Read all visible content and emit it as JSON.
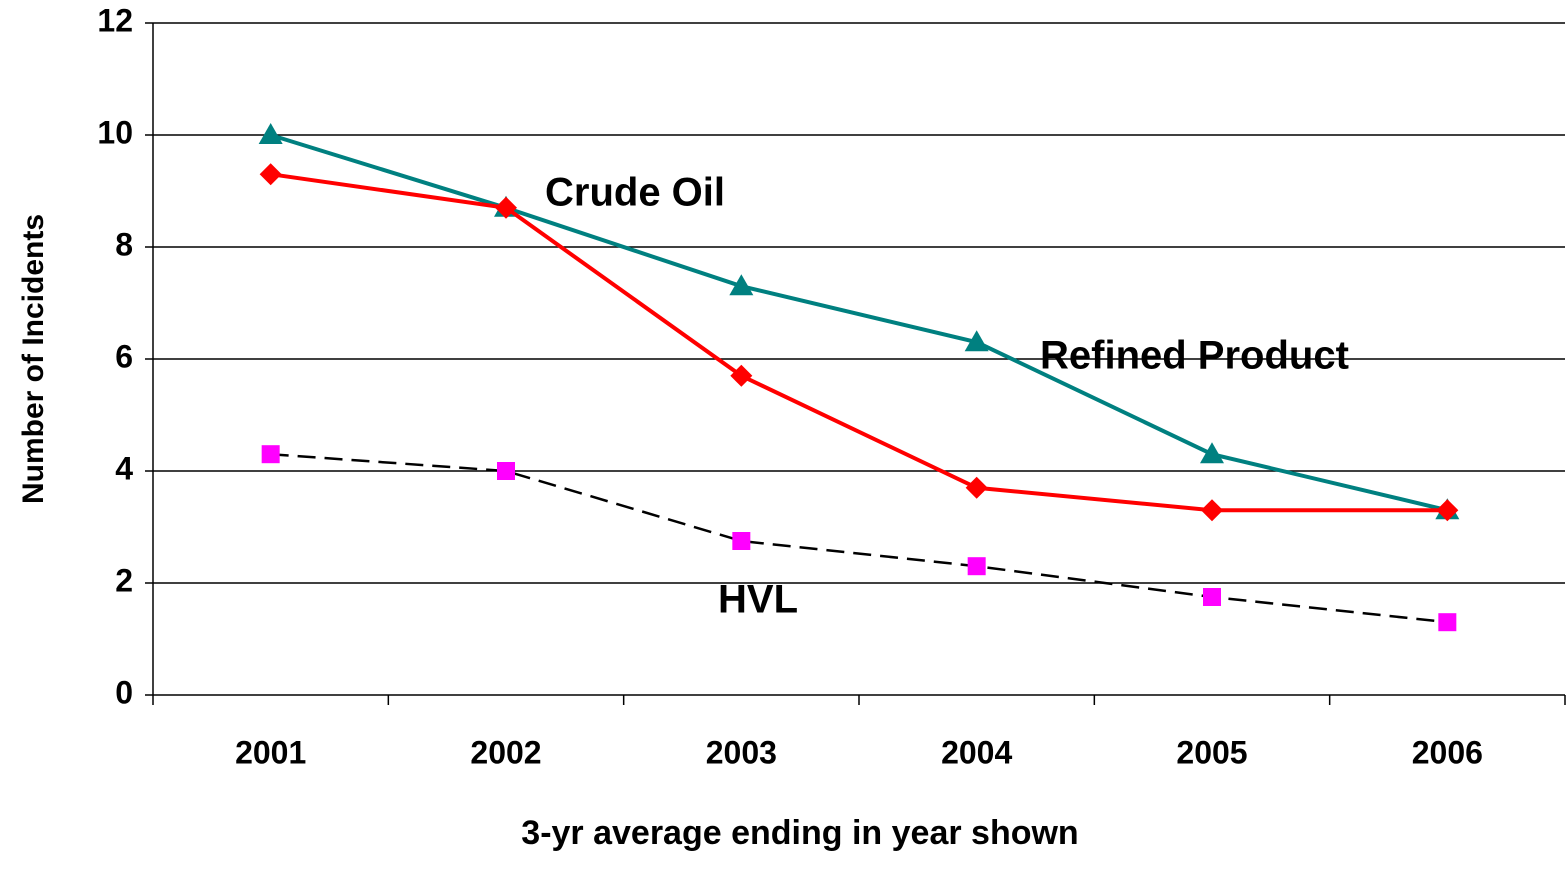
{
  "chart_data": {
    "type": "line",
    "x_label": "3-yr average ending in year shown",
    "y_label": "Number of Incidents",
    "categories": [
      "2001",
      "2002",
      "2003",
      "2004",
      "2005",
      "2006"
    ],
    "series": [
      {
        "color": "#008080",
        "marker": "triangle",
        "values": [
          10,
          8.7,
          7.3,
          6.3,
          4.3,
          3.3
        ]
      },
      {
        "color": "#ff0000",
        "marker": "diamond",
        "values": [
          9.3,
          8.7,
          5.7,
          3.7,
          3.3,
          3.3
        ]
      },
      {
        "color": "#ff00ff",
        "line_color": "#000000",
        "dashed": true,
        "marker": "square",
        "values": [
          4.3,
          4.0,
          2.75,
          2.3,
          1.75,
          1.3
        ]
      }
    ],
    "annotations": [
      "Crude Oil",
      "Refined Product",
      "HVL"
    ],
    "ylim": [
      0,
      12
    ],
    "yticks": [
      0,
      2,
      4,
      6,
      8,
      10,
      12
    ],
    "grid": true
  }
}
